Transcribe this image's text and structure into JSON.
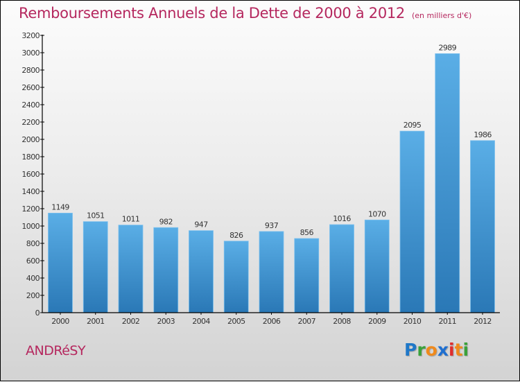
{
  "title": {
    "main": "Remboursements Annuels de la Dette de 2000 à 2012",
    "unit": "(en milliers d'€)"
  },
  "footer": {
    "city": "ANDRéSY",
    "logo": {
      "letters": [
        {
          "char": "P",
          "color": "#1f78c8"
        },
        {
          "char": "r",
          "color": "#3aa13a"
        },
        {
          "char": "o",
          "color": "#f08a1c"
        },
        {
          "char": "x",
          "color": "#1f6fd0"
        },
        {
          "char": "i",
          "color": "#e02d2d"
        },
        {
          "char": "t",
          "color": "#f08a1c"
        },
        {
          "char": "i",
          "color": "#3aa13a"
        }
      ]
    }
  },
  "colors": {
    "title": "#b5275e",
    "bar_top": "#5aaee6",
    "bar_bottom": "#2a78b6",
    "axis": "#000000"
  },
  "chart_data": {
    "type": "bar",
    "title": "Remboursements Annuels de la Dette de 2000 à 2012 (en milliers d'€)",
    "xlabel": "",
    "ylabel": "",
    "categories": [
      "2000",
      "2001",
      "2002",
      "2003",
      "2004",
      "2005",
      "2006",
      "2007",
      "2008",
      "2009",
      "2010",
      "2011",
      "2012"
    ],
    "values": [
      1149,
      1051,
      1011,
      982,
      947,
      826,
      937,
      856,
      1016,
      1070,
      2095,
      2989,
      1986
    ],
    "data_labels": [
      "1149",
      "1051",
      "1011",
      "982",
      "947",
      "826",
      "937",
      "856",
      "1016",
      "1070",
      "2095",
      "2989",
      "1986"
    ],
    "ylim": [
      0,
      3200
    ],
    "yticks": [
      0,
      200,
      400,
      600,
      800,
      1000,
      1200,
      1400,
      1600,
      1800,
      2000,
      2200,
      2400,
      2600,
      2800,
      3000,
      3200
    ],
    "grid": false,
    "legend": "none"
  }
}
